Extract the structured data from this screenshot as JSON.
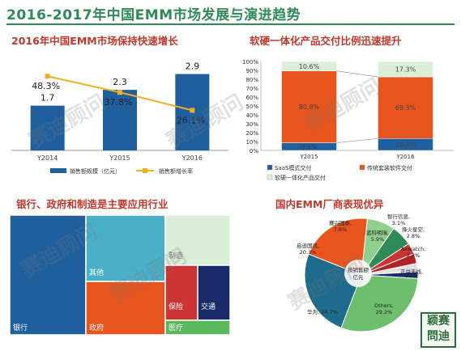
{
  "header": {
    "title": "2016-2017年中国EMM市场发展与演进趋势"
  },
  "colors": {
    "green": "#2e8b57",
    "red": "#c0392b",
    "blue": "#1f5f9e",
    "orange": "#f0b020",
    "orange_red": "#e8541e",
    "teal": "#4ab0c8",
    "light_green": "#dbefd8"
  },
  "watermark": {
    "text": "赛迪顾问"
  },
  "logo": {
    "line1": "颖赛",
    "line2": "問迪"
  },
  "chart_data": [
    {
      "type": "bar",
      "title": "2016年中国EMM市场保持快速增长",
      "categories": [
        "Y2014",
        "Y2015",
        "Y2016"
      ],
      "series": [
        {
          "name": "销售额规模（亿元）",
          "kind": "bar",
          "values": [
            1.7,
            2.3,
            2.9
          ],
          "color": "#1f5f9e"
        },
        {
          "name": "销售额增长率",
          "kind": "line",
          "values": [
            48.3,
            37.8,
            26.1
          ],
          "labels": [
            "48.3%",
            "37.8%",
            "26.1%"
          ],
          "color": "#f0b020"
        }
      ],
      "ylim": [
        0,
        3.5
      ]
    },
    {
      "type": "bar",
      "stacked": true,
      "percent": true,
      "title": "软硬一体化产品交付比例迅速提升",
      "categories": [
        "Y2015",
        "Y2016"
      ],
      "series": [
        {
          "name": "SaaS模式交付",
          "values": [
            8.6,
            13.4
          ],
          "color": "#1f5f9e"
        },
        {
          "name": "传统套装软件交付",
          "values": [
            80.8,
            69.3
          ],
          "color": "#e8541e"
        },
        {
          "name": "软硬一体化产品交付",
          "values": [
            10.6,
            17.3
          ],
          "color": "#dbefd8"
        }
      ],
      "yticks": [
        "0%",
        "10%",
        "20%",
        "30%",
        "40%",
        "50%",
        "60%",
        "70%",
        "80%",
        "90%",
        "100%"
      ]
    },
    {
      "type": "heatmap",
      "subtype": "treemap",
      "title": "银行、政府和制造是主要应用行业",
      "items": [
        {
          "name": "银行",
          "color": "#1f5f9e"
        },
        {
          "name": "其他",
          "color": "#4ab0c8"
        },
        {
          "name": "制造",
          "color": "#dbefd8"
        },
        {
          "name": "政府",
          "color": "#e8541e"
        },
        {
          "name": "保险",
          "color": "#cc3333"
        },
        {
          "name": "交通",
          "color": "#1b2a6b"
        },
        {
          "name": "医疗",
          "color": "#5cb85c"
        }
      ]
    },
    {
      "type": "pie",
      "title": "国内EMM厂商表现优异",
      "center_label": "按销售额\n亿元",
      "slices": [
        {
          "name": "Others",
          "value": 29.2,
          "label": "Others,\n29.2%",
          "color": "#6dbf6d"
        },
        {
          "name": "华为",
          "value": 24.7,
          "label": "华为, 24.7%",
          "color": "#1f6b8e"
        },
        {
          "name": "启迪国讯",
          "value": 20.3,
          "label": "启迪国讯,\n20.3%",
          "color": "#e8541e"
        },
        {
          "name": "赛兴国泰",
          "value": 7.8,
          "label": "赛兴国泰,\n7.8%",
          "color": "#8fd08f"
        },
        {
          "name": "蓝科明瑞",
          "value": 5.9,
          "label": "蓝科明瑞,\n5.9%",
          "color": "#2e8b57"
        },
        {
          "name": "智行信息",
          "value": 3.1,
          "label": "智行信息,\n3.1%",
          "color": "#cc3333"
        },
        {
          "name": "烽火星空",
          "value": 2.8,
          "label": "烽火星空,\n2.8%",
          "color": "#b22222"
        },
        {
          "name": "Airwatch",
          "value": 2.3,
          "label": "Airwatch,\n2.3%",
          "color": "#e0e0e0"
        },
        {
          "name": "正益无线",
          "value": 1.9,
          "label": "正益无线,\n1.9%",
          "color": "#1b2a6b"
        }
      ]
    }
  ]
}
